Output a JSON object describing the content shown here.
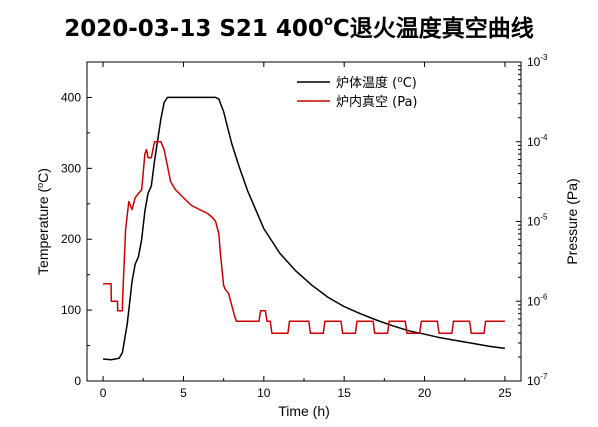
{
  "chart_data": {
    "type": "line",
    "title": {
      "main": "2020-03-13  S21 400",
      "degree_sup": "o",
      "rest": "C退火温度真空曲线"
    },
    "xlabel": "Time (h)",
    "ylabel": "Temperature (",
    "ylabel_sup": "o",
    "ylabel_end": "C)",
    "y2label": "Pressure (Pa)",
    "xlim": [
      -1,
      26
    ],
    "ylim": [
      0,
      450
    ],
    "y2lim_log10": [
      -7,
      -3
    ],
    "y2scale": "log",
    "x_ticks": [
      "0",
      "5",
      "10",
      "15",
      "20",
      "25"
    ],
    "y_ticks": [
      "0",
      "100",
      "200",
      "300",
      "400"
    ],
    "y2_ticks": [
      {
        "base": "10",
        "exp": "-7"
      },
      {
        "base": "10",
        "exp": "-6"
      },
      {
        "base": "10",
        "exp": "-5"
      },
      {
        "base": "10",
        "exp": "-4"
      },
      {
        "base": "10",
        "exp": "-3"
      }
    ],
    "legend_position": "top-right",
    "series": [
      {
        "name": "炉体温度 (",
        "name_sup": "o",
        "name_end": "C)",
        "color": "#000000",
        "axis": "left",
        "x": [
          0.0,
          0.5,
          1.0,
          1.2,
          1.5,
          1.8,
          2.0,
          2.2,
          2.4,
          2.6,
          2.8,
          3.0,
          3.2,
          3.4,
          3.6,
          3.8,
          4.0,
          4.5,
          5.0,
          6.0,
          7.0,
          7.2,
          7.5,
          8.0,
          8.5,
          9.0,
          10.0,
          11.0,
          12.0,
          13.0,
          14.0,
          15.0,
          16.0,
          17.0,
          18.0,
          19.0,
          20.0,
          21.0,
          22.0,
          23.0,
          24.0,
          25.0
        ],
        "y": [
          31,
          30,
          32,
          40,
          80,
          140,
          165,
          175,
          200,
          240,
          265,
          275,
          310,
          340,
          370,
          393,
          400,
          400,
          400,
          400,
          400,
          398,
          380,
          335,
          300,
          268,
          215,
          180,
          155,
          135,
          118,
          105,
          95,
          86,
          78,
          71,
          66,
          61,
          57,
          53,
          49,
          46
        ]
      },
      {
        "name": "炉内真空 (Pa)",
        "color": "#cc0000",
        "axis": "right",
        "x": [
          0.0,
          0.5,
          0.51,
          0.9,
          0.91,
          1.2,
          1.21,
          1.4,
          1.6,
          1.8,
          2.0,
          2.2,
          2.4,
          2.6,
          2.7,
          2.8,
          3.0,
          3.2,
          3.4,
          3.6,
          3.8,
          4.0,
          4.2,
          4.5,
          5.0,
          5.5,
          6.0,
          6.5,
          6.8,
          7.0,
          7.2,
          7.3,
          7.5,
          7.6,
          7.8,
          8.0,
          8.2,
          8.3,
          8.5,
          9.0,
          9.5,
          9.7,
          9.8,
          10.1,
          10.2,
          10.4,
          10.5,
          11.5,
          11.6,
          12.8,
          12.9,
          13.7,
          13.8,
          14.8,
          14.9,
          15.7,
          15.8,
          16.8,
          16.9,
          17.7,
          17.8,
          18.8,
          18.9,
          19.7,
          19.8,
          20.8,
          20.9,
          21.7,
          21.8,
          22.8,
          22.9,
          23.7,
          23.8,
          25.0
        ],
        "y_log10": [
          -5.78,
          -5.78,
          -6.0,
          -6.0,
          -6.12,
          -6.12,
          -6.0,
          -5.1,
          -4.75,
          -4.85,
          -4.7,
          -4.65,
          -4.6,
          -4.15,
          -4.1,
          -4.2,
          -4.2,
          -4.0,
          -4.0,
          -4.0,
          -4.1,
          -4.3,
          -4.5,
          -4.6,
          -4.7,
          -4.8,
          -4.85,
          -4.9,
          -4.95,
          -5.0,
          -5.15,
          -5.4,
          -5.8,
          -5.85,
          -5.9,
          -6.05,
          -6.2,
          -6.25,
          -6.25,
          -6.25,
          -6.25,
          -6.25,
          -6.12,
          -6.12,
          -6.25,
          -6.25,
          -6.4,
          -6.4,
          -6.25,
          -6.25,
          -6.4,
          -6.4,
          -6.25,
          -6.25,
          -6.4,
          -6.4,
          -6.25,
          -6.25,
          -6.4,
          -6.4,
          -6.25,
          -6.25,
          -6.4,
          -6.4,
          -6.25,
          -6.25,
          -6.4,
          -6.4,
          -6.25,
          -6.25,
          -6.4,
          -6.4,
          -6.25,
          -6.25
        ]
      }
    ]
  }
}
